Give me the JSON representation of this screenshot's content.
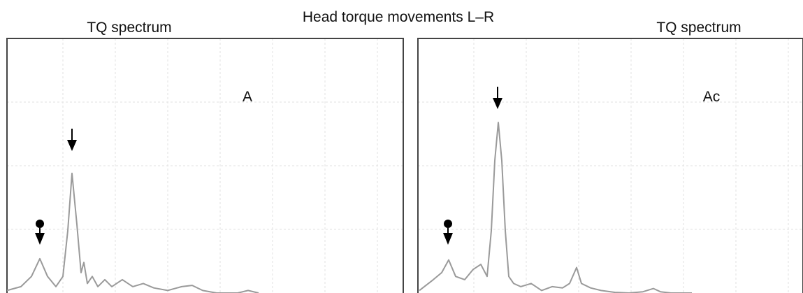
{
  "title": "Head torque movements L–R",
  "chart_data": [
    {
      "type": "line",
      "title": "TQ spectrum",
      "annotation": "A",
      "color": "#9a9a9a",
      "grid": true,
      "xlim": [
        0,
        567
      ],
      "ylim": [
        0,
        4
      ],
      "x": [
        0,
        20,
        35,
        47,
        58,
        70,
        80,
        87,
        93,
        100,
        106,
        110,
        115,
        122,
        130,
        140,
        150,
        165,
        180,
        195,
        210,
        230,
        250,
        265,
        280,
        300,
        330,
        345,
        360
      ],
      "values": [
        0.04,
        0.1,
        0.26,
        0.54,
        0.26,
        0.1,
        0.26,
        0.98,
        1.88,
        1.08,
        0.32,
        0.48,
        0.15,
        0.26,
        0.1,
        0.21,
        0.1,
        0.21,
        0.1,
        0.15,
        0.08,
        0.04,
        0.1,
        0.12,
        0.04,
        0,
        0,
        0.04,
        0
      ]
    },
    {
      "type": "line",
      "title": "TQ spectrum",
      "annotation": "Ac",
      "color": "#9a9a9a",
      "grid": true,
      "xlim": [
        0,
        551
      ],
      "ylim": [
        0,
        4
      ],
      "x": [
        2,
        22,
        34,
        44,
        54,
        67,
        79,
        90,
        99,
        105,
        110,
        115,
        120,
        125,
        130,
        137,
        147,
        162,
        177,
        192,
        207,
        217,
        227,
        234,
        247,
        262,
        282,
        302,
        322,
        337,
        347,
        362,
        392
      ],
      "values": [
        0.04,
        0.21,
        0.32,
        0.52,
        0.26,
        0.21,
        0.37,
        0.45,
        0.26,
        0.98,
        2.08,
        2.68,
        2.08,
        0.98,
        0.26,
        0.15,
        0.1,
        0.15,
        0.04,
        0.1,
        0.08,
        0.15,
        0.4,
        0.15,
        0.08,
        0.04,
        0.01,
        0,
        0.02,
        0.07,
        0.02,
        0,
        0
      ]
    }
  ]
}
